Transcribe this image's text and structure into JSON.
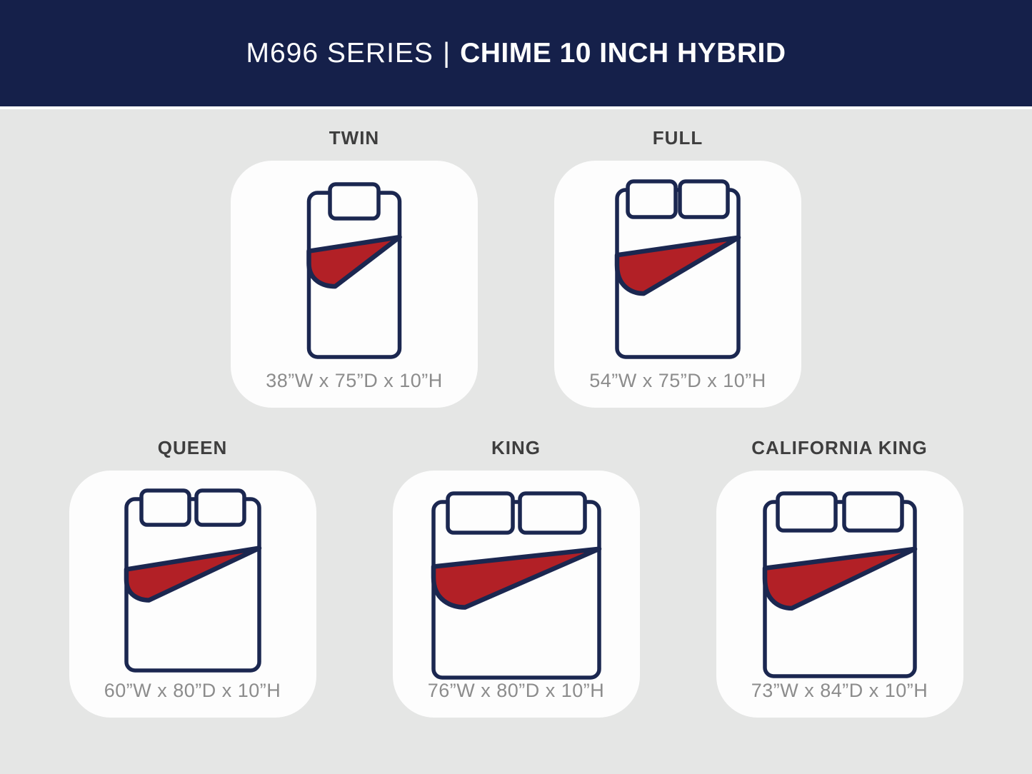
{
  "header": {
    "series": "M696 SERIES",
    "separator": "|",
    "product": "CHIME 10 INCH HYBRID"
  },
  "colors": {
    "header_bg": "#15204a",
    "header_border": "#ffffff",
    "page_bg": "#e5e6e5",
    "card_bg": "#fdfdfd",
    "outline_navy": "#1b2750",
    "blanket_red": "#b22026",
    "label_text": "#3e3e3e",
    "dimension_text": "#8c8c8c"
  },
  "sizes": [
    {
      "id": "twin",
      "label": "TWIN",
      "dimensions": "38”W x 75”D x 10”H",
      "pillows": 1,
      "icon": "twin-mattress-top-view-icon"
    },
    {
      "id": "full",
      "label": "FULL",
      "dimensions": "54”W x 75”D x 10”H",
      "pillows": 2,
      "icon": "full-mattress-top-view-icon"
    },
    {
      "id": "queen",
      "label": "QUEEN",
      "dimensions": "60”W x 80”D x 10”H",
      "pillows": 2,
      "icon": "queen-mattress-top-view-icon"
    },
    {
      "id": "king",
      "label": "KING",
      "dimensions": "76”W x 80”D x 10”H",
      "pillows": 2,
      "icon": "king-mattress-top-view-icon"
    },
    {
      "id": "california-king",
      "label": "CALIFORNIA KING",
      "dimensions": "73”W x 84”D x 10”H",
      "pillows": 2,
      "icon": "california-king-mattress-top-view-icon"
    }
  ],
  "rows": [
    [
      0,
      1
    ],
    [
      2,
      3,
      4
    ]
  ]
}
